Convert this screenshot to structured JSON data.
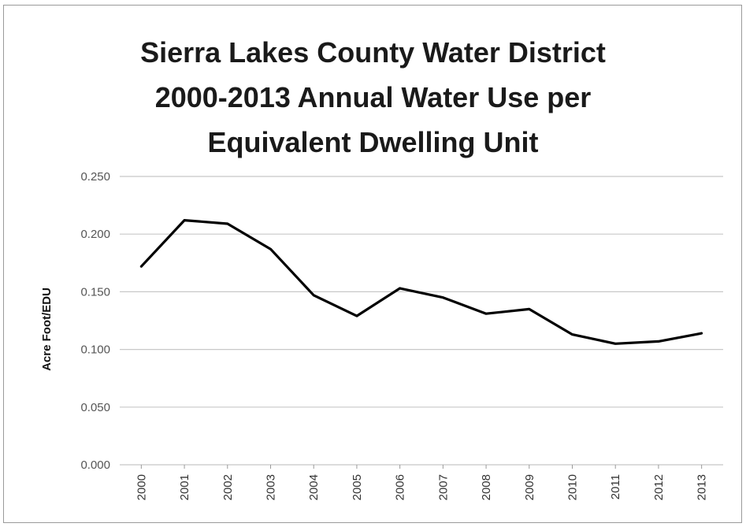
{
  "chart_data": {
    "type": "line",
    "title": [
      "Sierra Lakes County Water District",
      "2000-2013 Annual Water Use per",
      "Equivalent Dwelling Unit"
    ],
    "xlabel": "",
    "ylabel": "Acre Foot/EDU",
    "categories": [
      "2000",
      "2001",
      "2002",
      "2003",
      "2004",
      "2005",
      "2006",
      "2007",
      "2008",
      "2009",
      "2010",
      "2011",
      "2012",
      "2013"
    ],
    "series": [
      {
        "values": [
          0.172,
          0.212,
          0.209,
          0.187,
          0.147,
          0.129,
          0.153,
          0.145,
          0.131,
          0.135,
          0.113,
          0.105,
          0.107,
          0.114
        ]
      }
    ],
    "ylim": [
      0.0,
      0.25
    ],
    "yticks": [
      "0.000",
      "0.050",
      "0.100",
      "0.150",
      "0.200",
      "0.250"
    ],
    "grid": true,
    "legend": "none",
    "line_color": "#000000",
    "grid_color": "#c8c8c8"
  }
}
